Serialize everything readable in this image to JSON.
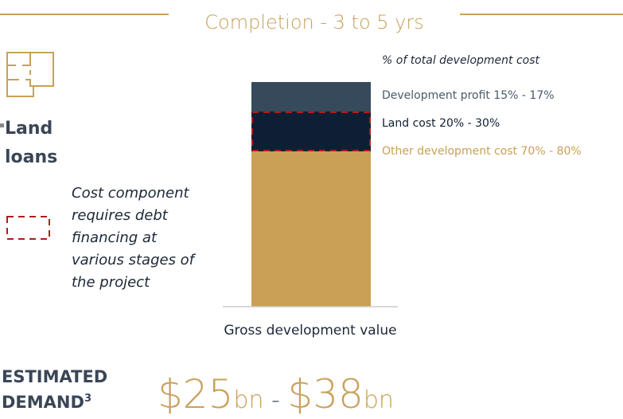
{
  "header": {
    "title": "Completion - 3 to 5 yrs"
  },
  "loan_type": {
    "lines": [
      "Land",
      "loans"
    ]
  },
  "legend": {
    "lines": [
      "Cost component",
      "requires debt",
      "financing at",
      "various stages of",
      "the project"
    ]
  },
  "bar": {
    "caption": "% of total development cost",
    "segments": [
      "Development profit 15% - 17%",
      "Land cost 20% - 30%",
      "Other development cost 70% - 80%"
    ],
    "axis_label": "Gross development value"
  },
  "demand": {
    "lines": [
      "ESTIMATED",
      "DEMAND"
    ],
    "superscript": "3",
    "value": [
      "$25",
      "bn",
      " - ",
      "$38",
      "bn"
    ]
  }
}
